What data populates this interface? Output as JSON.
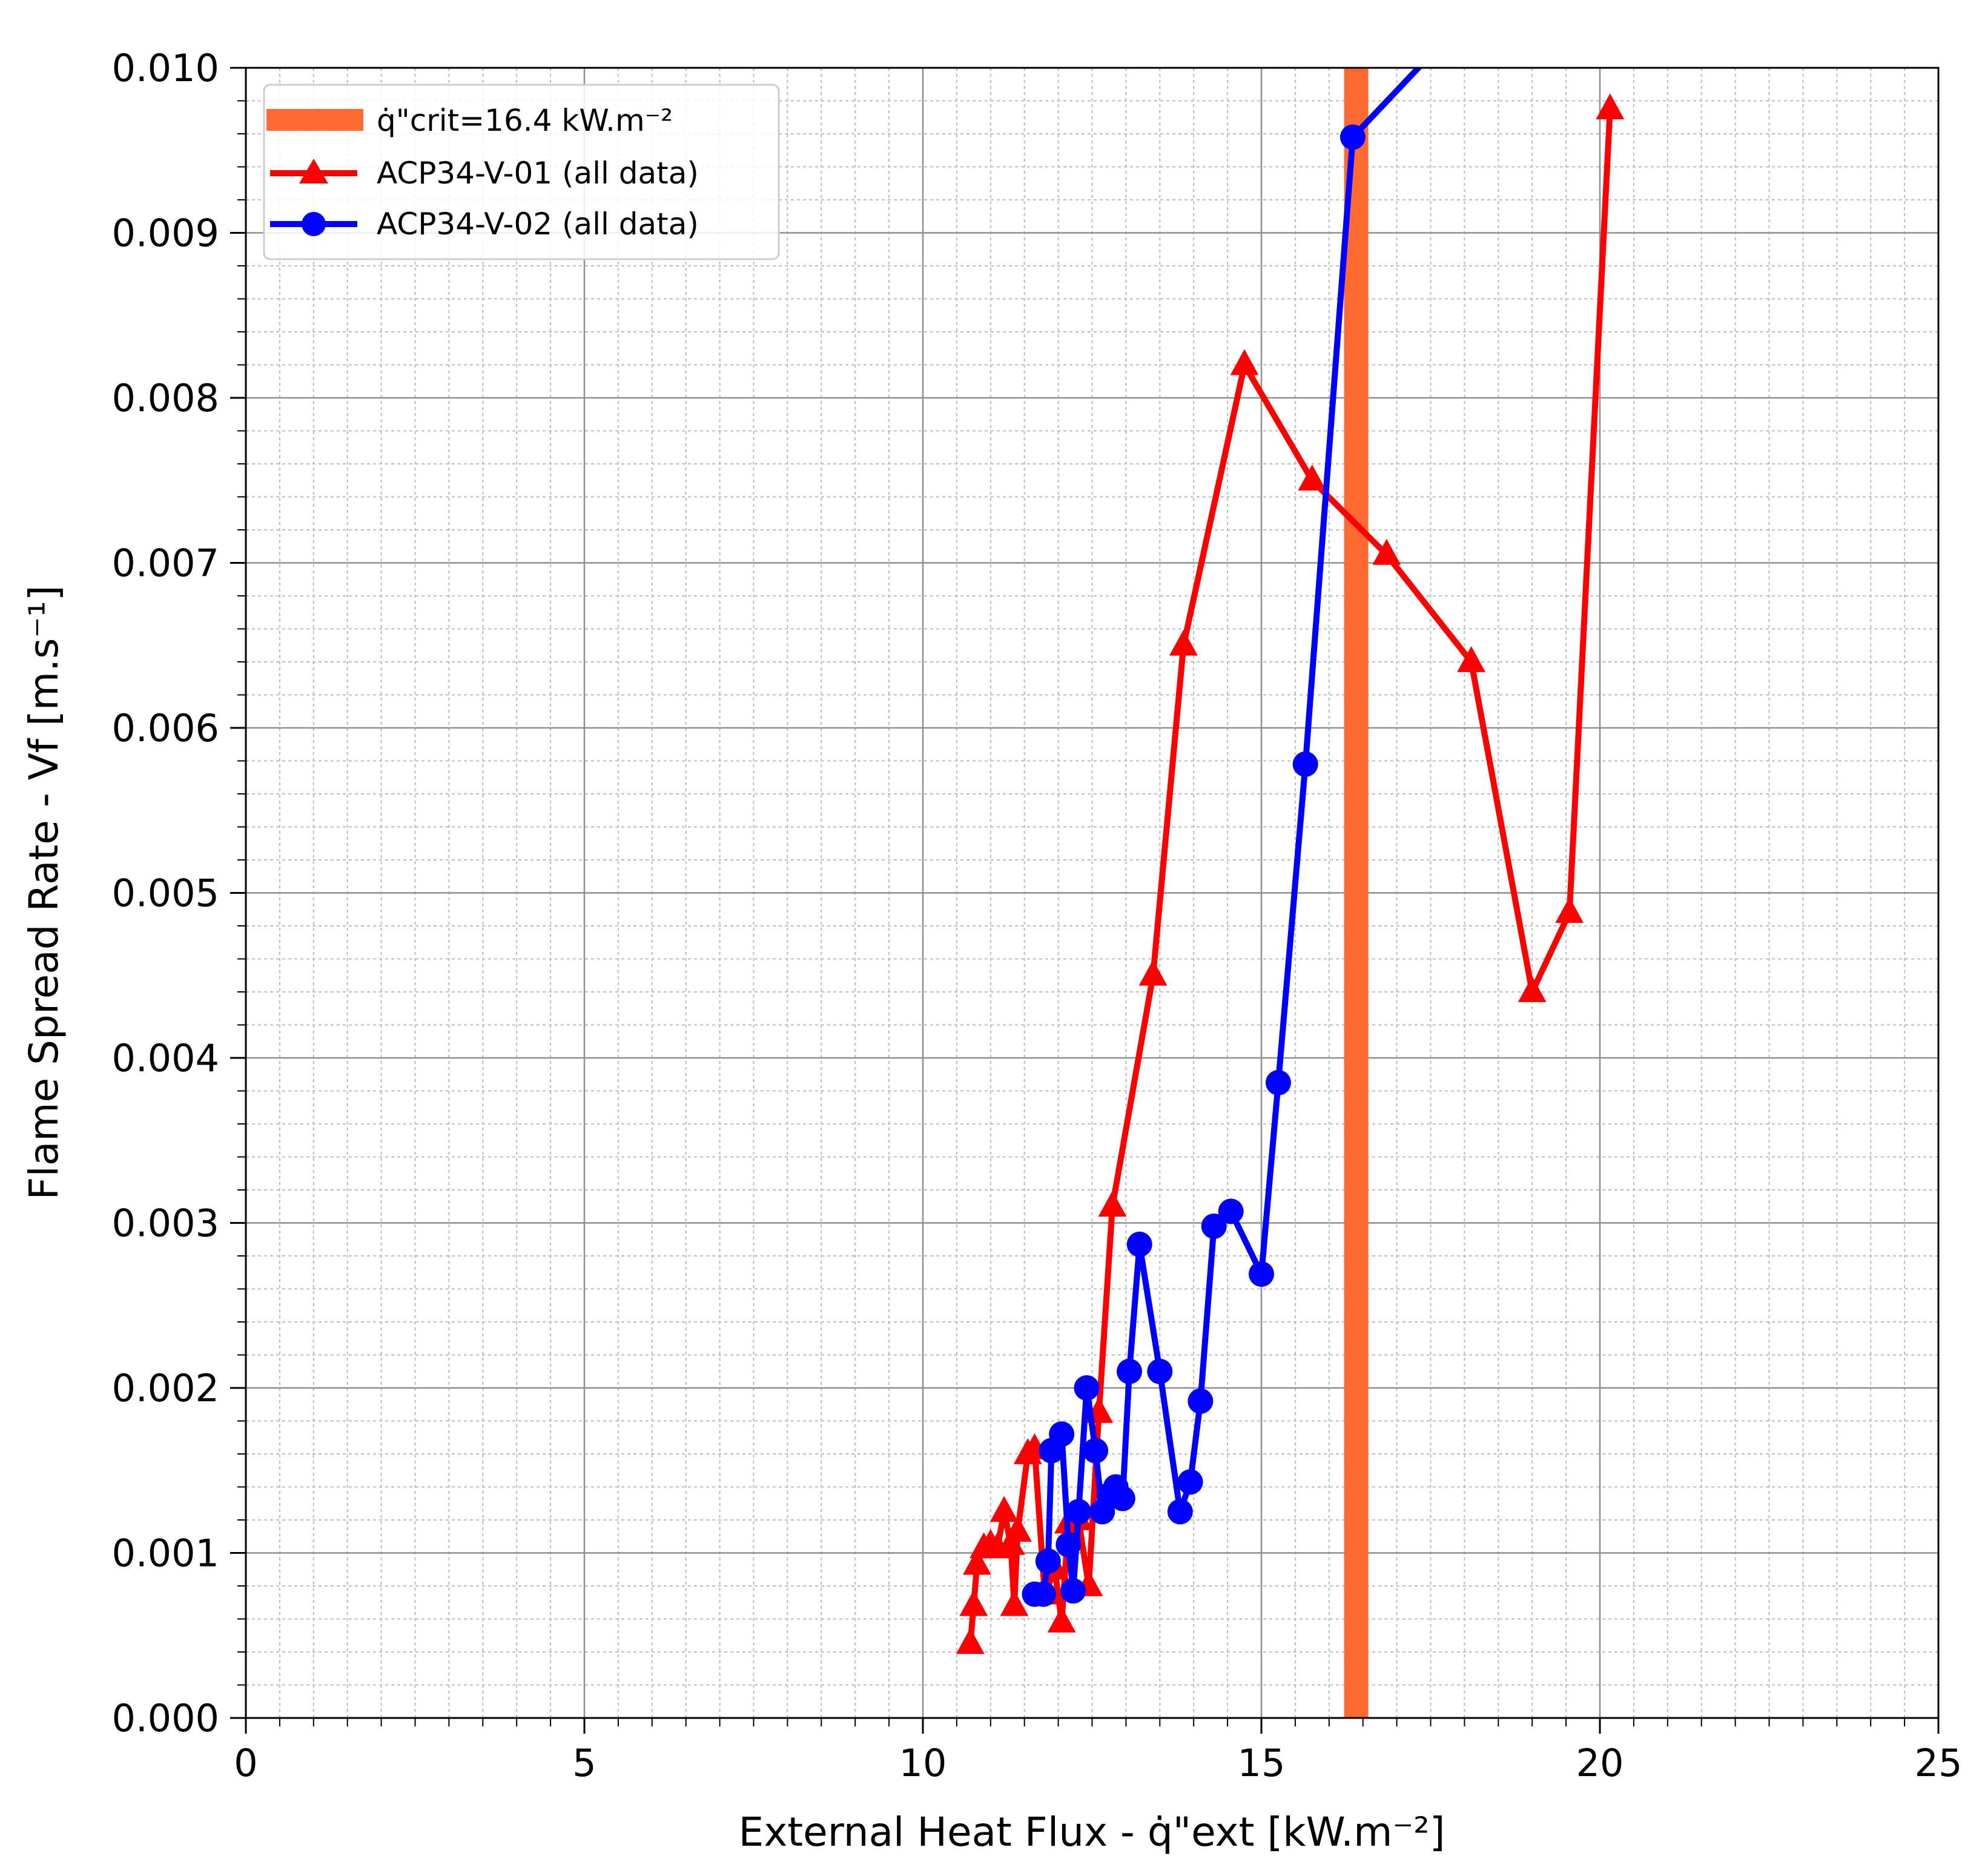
{
  "chart_data": {
    "type": "line",
    "xlabel": "External Heat Flux - q̇\"ext [kW.m⁻²]",
    "ylabel": "Flame Spread Rate - Vf [m.s⁻¹]",
    "xlim": [
      0,
      25
    ],
    "ylim": [
      0,
      0.01
    ],
    "x_ticks": [
      "0",
      "5",
      "10",
      "15",
      "20",
      "25"
    ],
    "y_ticks": [
      "0.000",
      "0.001",
      "0.002",
      "0.003",
      "0.004",
      "0.005",
      "0.006",
      "0.007",
      "0.008",
      "0.009",
      "0.010"
    ],
    "grid": true,
    "legend_position": "top-left",
    "critical_flux": {
      "label": "q̇\"crit=16.4 kW.m⁻²",
      "value": 16.4,
      "color": "#ff6a33"
    },
    "series": [
      {
        "name": "ACP34-V-01 (all data)",
        "color": "#ff0000",
        "marker": "triangle",
        "x": [
          10.7,
          10.75,
          10.8,
          10.9,
          11.0,
          11.1,
          11.2,
          11.3,
          11.35,
          11.4,
          11.55,
          11.65,
          11.8,
          11.95,
          12.05,
          12.15,
          12.3,
          12.45,
          12.6,
          12.8,
          13.4,
          13.85,
          14.75,
          15.75,
          16.85,
          18.1,
          19.0,
          19.55,
          20.15
        ],
        "y": [
          0.00045,
          0.00068,
          0.00093,
          0.00103,
          0.00105,
          0.00103,
          0.00125,
          0.00105,
          0.00068,
          0.00113,
          0.0016,
          0.00163,
          0.00075,
          0.0009,
          0.00058,
          0.00118,
          0.0012,
          0.0008,
          0.00185,
          0.0031,
          0.0045,
          0.0065,
          0.0082,
          0.0075,
          0.00705,
          0.0064,
          0.0044,
          0.00488,
          0.00975
        ]
      },
      {
        "name": "ACP34-V-02 (all data)",
        "color": "#0000ff",
        "marker": "circle",
        "x": [
          11.65,
          11.78,
          11.85,
          11.9,
          12.05,
          12.15,
          12.22,
          12.3,
          12.42,
          12.55,
          12.65,
          12.75,
          12.85,
          12.95,
          13.05,
          13.2,
          13.5,
          13.8,
          13.95,
          14.1,
          14.3,
          14.55,
          15.0,
          15.25,
          15.65,
          16.35,
          17.55,
          18.05
        ],
        "y": [
          0.00075,
          0.00075,
          0.00095,
          0.00162,
          0.00172,
          0.00105,
          0.00077,
          0.00125,
          0.002,
          0.00162,
          0.00125,
          0.00135,
          0.0014,
          0.00133,
          0.0021,
          0.00287,
          0.0021,
          0.00125,
          0.00143,
          0.00192,
          0.00298,
          0.00307,
          0.00269,
          0.00385,
          0.00578,
          0.00958,
          0.0101,
          0.0101
        ]
      }
    ]
  }
}
